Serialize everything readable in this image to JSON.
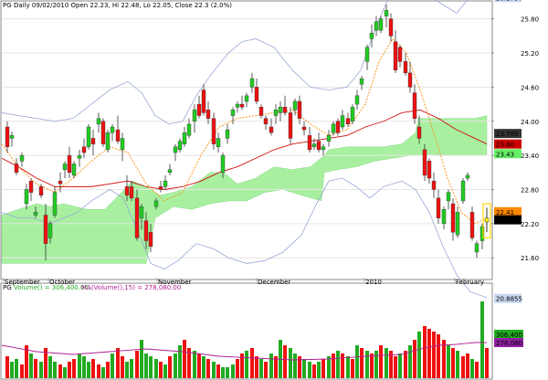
{
  "chart_data": [
    {
      "panel": "price",
      "type": "candlestick",
      "header": {
        "symbol": "PG",
        "text": "Daily 09/02/2010 Open 22.23, Hi 22.48, Lo 22.05, Close 22.3 (2.0%)"
      },
      "x_labels": [
        "September",
        "October",
        "November",
        "December",
        "2010",
        "February"
      ],
      "y_ticks": [
        21.6,
        22.2,
        22.8,
        23.4,
        24.0,
        24.6,
        25.2,
        25.8
      ],
      "ylim": [
        21.25,
        26.1
      ],
      "price_tags": [
        {
          "text": "26.1757",
          "value": 26.1757,
          "color": "#c8d8f0"
        },
        {
          "text": "23.785",
          "value": 23.785,
          "color": "#333333"
        },
        {
          "text": "23.60",
          "value": 23.6,
          "color": "#cc0000"
        },
        {
          "text": "23.43",
          "value": 23.43,
          "color": "#66ee66"
        },
        {
          "text": "22.41",
          "value": 22.41,
          "color": "#ff8800"
        },
        {
          "text": "22.3",
          "value": 22.3,
          "color": "#000000"
        },
        {
          "text": "20.8855",
          "value": 20.8855,
          "color": "#c8d8f0"
        }
      ],
      "colors": {
        "up": "#22cc22",
        "down": "#ee1111",
        "cloud": "#a8f0a0",
        "bands": "#9aa7d8",
        "ma_red": "#d01010",
        "ma_orange": "#ff8c00"
      }
    },
    {
      "panel": "volume",
      "type": "bar",
      "header": {
        "symbol": "PG",
        "volume_label": "Volume() = 306,400.00,",
        "ma_label": "MA(Volume(),15) = 278,080.00"
      },
      "price_tags": [
        {
          "text": "306,400",
          "color": "#22aa22"
        },
        {
          "text": "278,080",
          "color": "#9020a0"
        }
      ]
    }
  ]
}
